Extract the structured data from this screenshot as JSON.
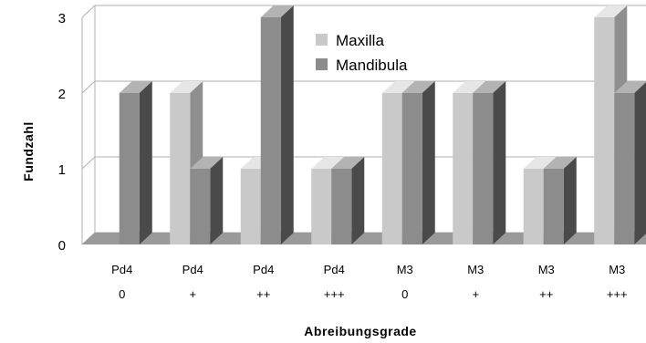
{
  "chart_data": {
    "type": "bar",
    "categories": [
      [
        "Pd4",
        "0"
      ],
      [
        "Pd4",
        "+"
      ],
      [
        "Pd4",
        "++"
      ],
      [
        "Pd4",
        "+++"
      ],
      [
        "M3",
        "0"
      ],
      [
        "M3",
        "+"
      ],
      [
        "M3",
        "++"
      ],
      [
        "M3",
        "+++"
      ]
    ],
    "series": [
      {
        "name": "Maxilla",
        "values": [
          0,
          2,
          1,
          1,
          2,
          2,
          1,
          3
        ]
      },
      {
        "name": "Mandibula",
        "values": [
          2,
          1,
          3,
          1,
          2,
          2,
          1,
          2
        ]
      }
    ],
    "xlabel": "Abreibungsgrade",
    "ylabel": "Fundzahl",
    "ylim": [
      0,
      3
    ],
    "yticks": [
      0,
      1,
      2,
      3
    ],
    "grid": true,
    "legend_position": "top-center",
    "colors": {
      "Maxilla": {
        "front": "#c9c9c9",
        "side": "#8f8f8f",
        "top": "#e6e6e6"
      },
      "Mandibula": {
        "front": "#8c8c8c",
        "side": "#4a4a4a",
        "top": "#b3b3b3"
      },
      "floor": "#9a9a9a",
      "grid": "#b0b0b0"
    }
  }
}
